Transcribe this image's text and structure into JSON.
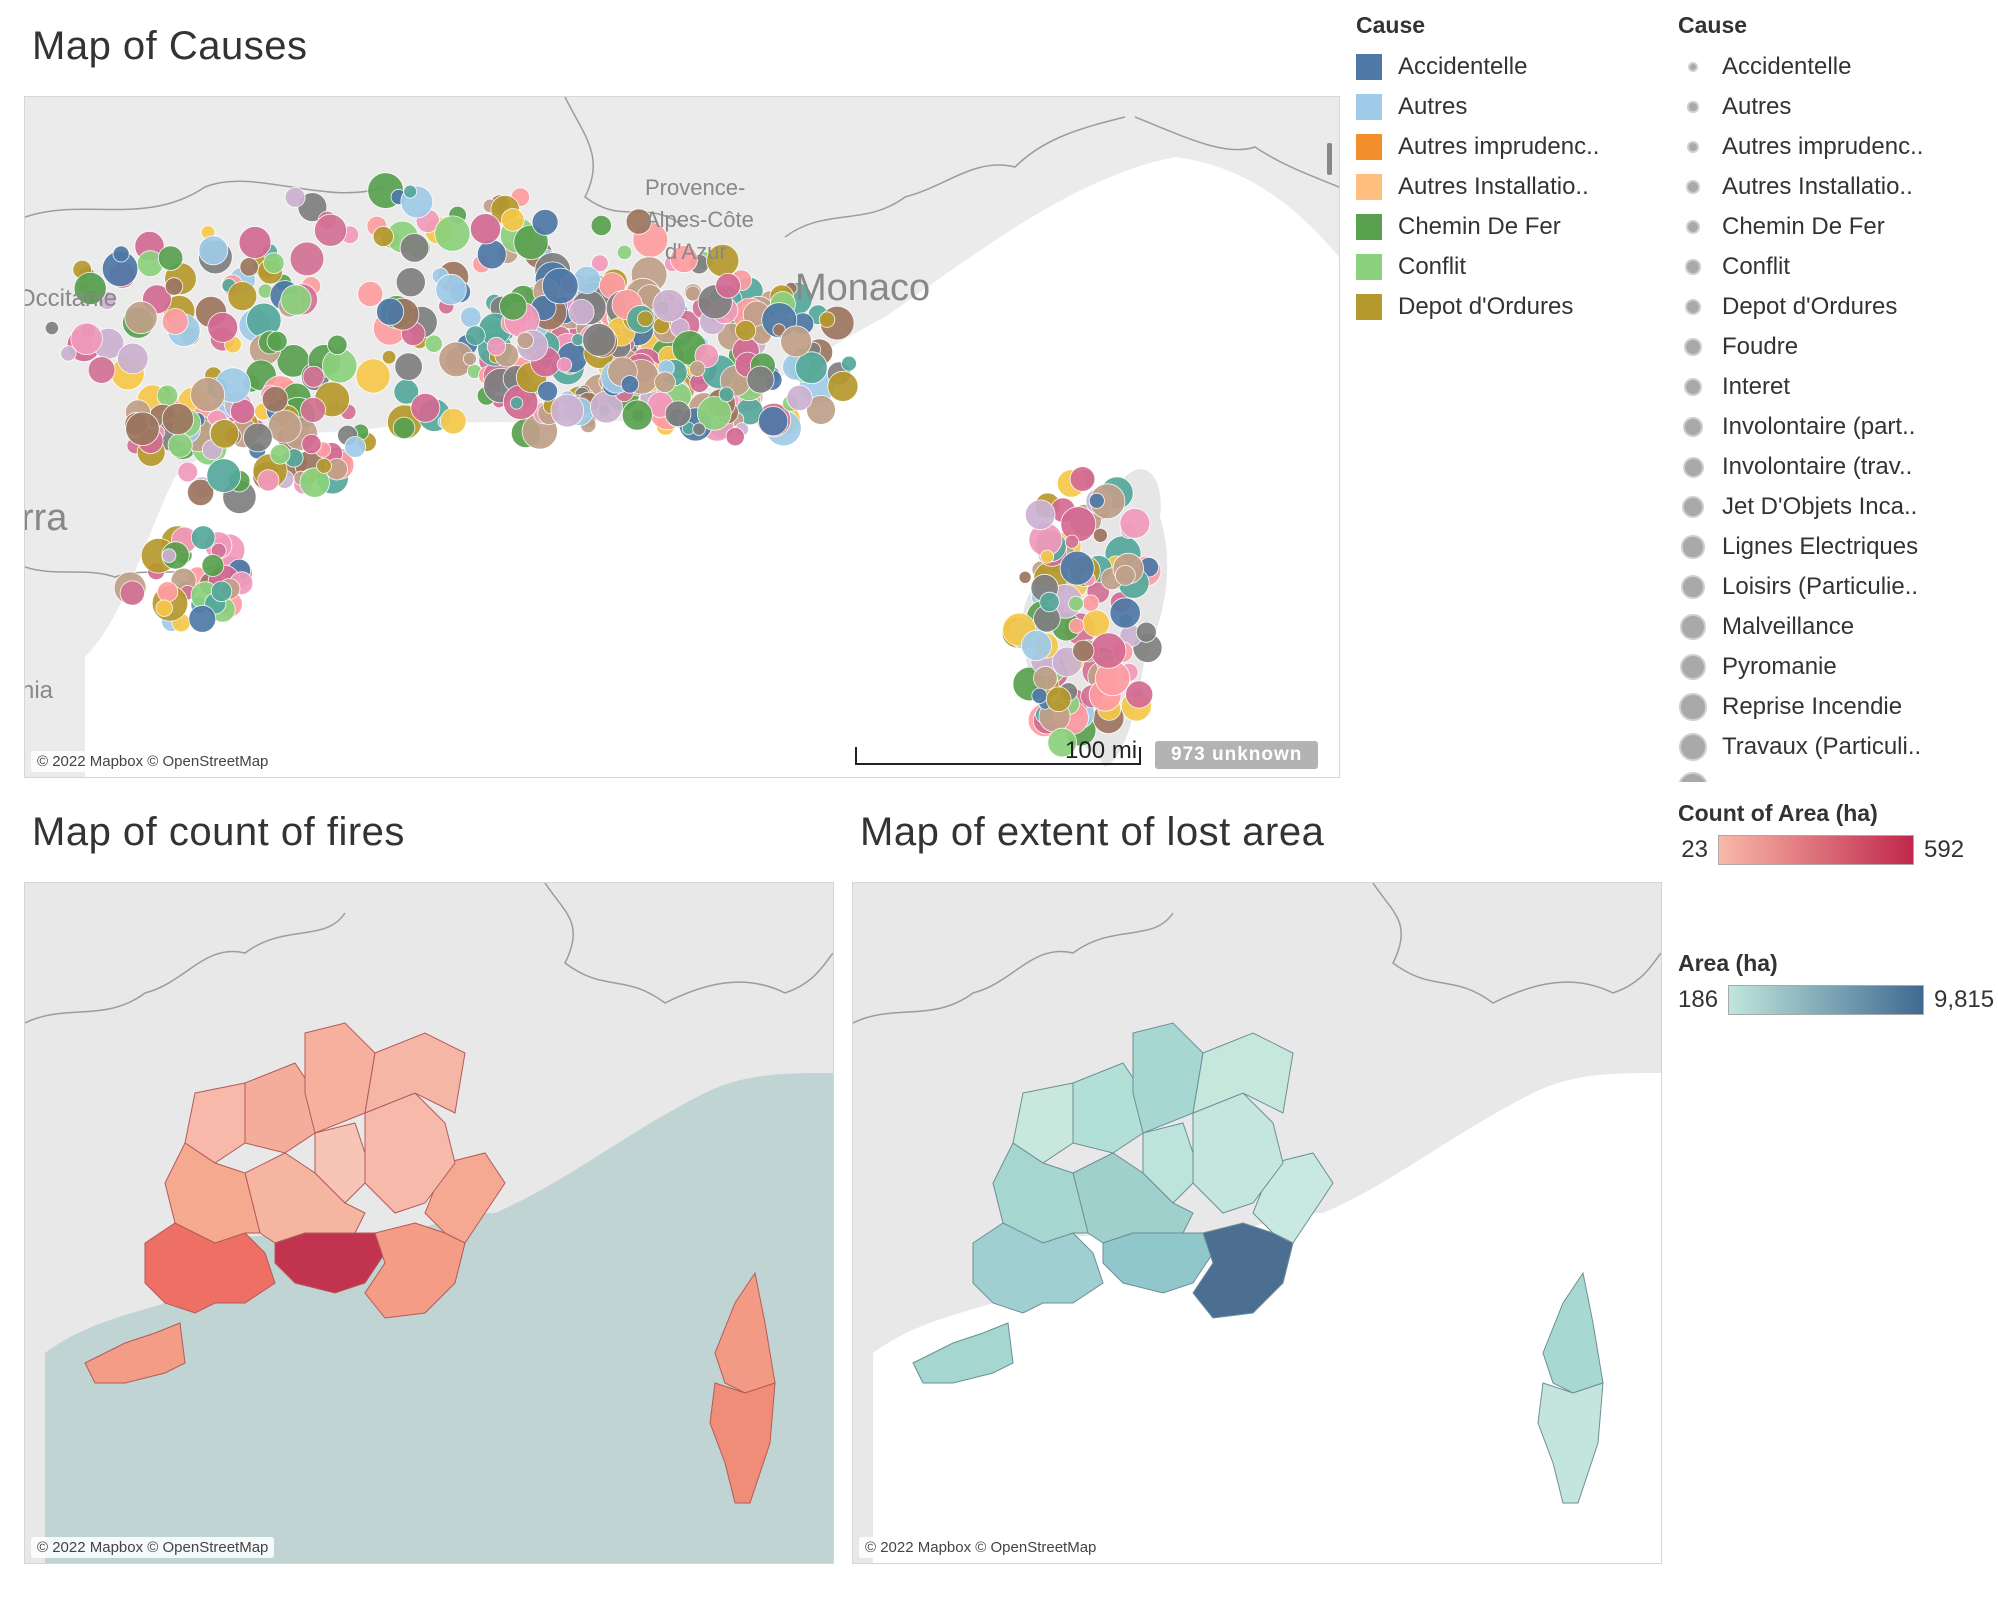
{
  "titles": {
    "causes": "Map of Causes",
    "count": "Map of count of fires",
    "area": "Map of extent of lost area"
  },
  "credit": "© 2022 Mapbox © OpenStreetMap",
  "scale_label": "100 mi",
  "unknown_badge": "973 unknown",
  "map_labels": {
    "occitanie": "Occitanie",
    "provence": "Provence-",
    "alpes": "Alpes-Côte",
    "azur": "d'Azur",
    "monaco": "Monaco",
    "andorra": "rra",
    "catalonia": "nia"
  },
  "legend_color": {
    "title": "Cause",
    "items": [
      {
        "label": "Accidentelle",
        "color": "#4e79a7"
      },
      {
        "label": "Autres",
        "color": "#a0cbe8"
      },
      {
        "label": "Autres imprudenc..",
        "color": "#f28e2b"
      },
      {
        "label": "Autres Installatio..",
        "color": "#ffbe7d"
      },
      {
        "label": "Chemin De Fer",
        "color": "#59a14f"
      },
      {
        "label": "Conflit",
        "color": "#8cd17d"
      },
      {
        "label": "Depot d'Ordures",
        "color": "#b6992d"
      }
    ]
  },
  "legend_size": {
    "title": "Cause",
    "items": [
      {
        "label": "Accidentelle"
      },
      {
        "label": "Autres"
      },
      {
        "label": "Autres imprudenc.."
      },
      {
        "label": "Autres Installatio.."
      },
      {
        "label": "Chemin De Fer"
      },
      {
        "label": "Conflit"
      },
      {
        "label": "Depot d'Ordures"
      },
      {
        "label": "Foudre"
      },
      {
        "label": "Interet"
      },
      {
        "label": "Involontaire (part.."
      },
      {
        "label": "Involontaire (trav.."
      },
      {
        "label": "Jet D'Objets Inca.."
      },
      {
        "label": "Lignes Electriques"
      },
      {
        "label": "Loisirs (Particulie.."
      },
      {
        "label": "Malveillance"
      },
      {
        "label": "Pyromanie"
      },
      {
        "label": "Reprise Incendie"
      },
      {
        "label": "Travaux (Particuli.."
      }
    ]
  },
  "legend_count": {
    "title": "Count of Area (ha)",
    "min": "23",
    "max": "592",
    "color_low": "#f9b9a8",
    "color_high": "#c0274c"
  },
  "legend_area": {
    "title": "Area (ha)",
    "min": "186",
    "max": "9,815",
    "color_low": "#bfe6dc",
    "color_high": "#3f6a91"
  },
  "colors": {
    "sea_count": "#c0d4d3",
    "land": "#e6e6e6",
    "land_light": "#ececec",
    "border": "#9c9c9c",
    "water_white": "#ffffff"
  },
  "icons": {
    "legend_swatch": "square",
    "size_marker": "circle"
  }
}
